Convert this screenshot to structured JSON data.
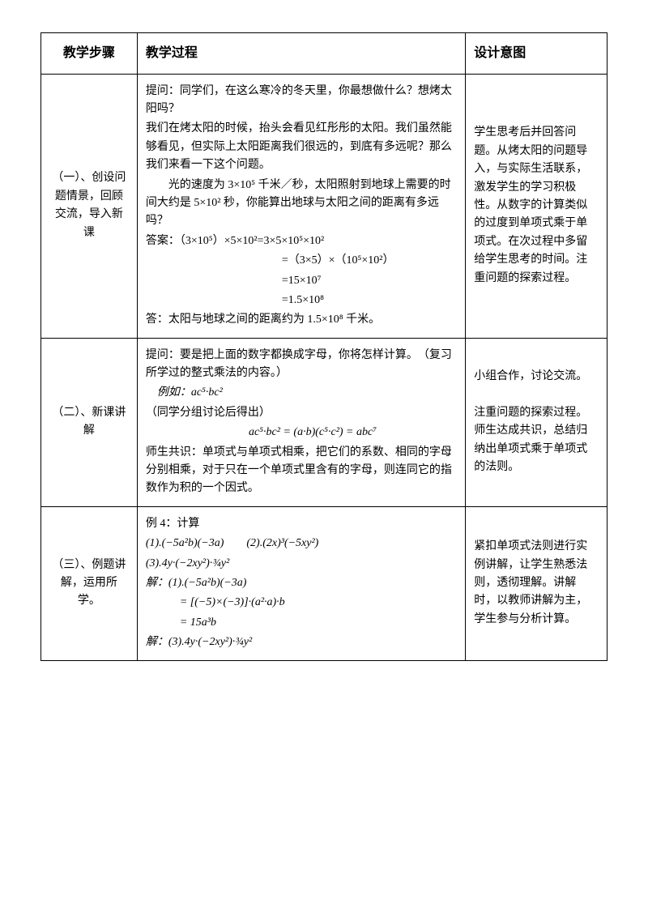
{
  "headers": {
    "step": "教学步骤",
    "process": "教学过程",
    "intent": "设计意图"
  },
  "rows": [
    {
      "step": "（一）、创设问题情景，回顾交流，导入新课",
      "process": {
        "lines": [
          "提问：同学们，在这么寒冷的冬天里，你最想做什么？想烤太阳吗？",
          "我们在烤太阳的时候，抬头会看见红彤彤的太阳。我们虽然能够看见，但实际上太阳距离我们很远的，到底有多远呢？那么我们来看一下这个问题。",
          "",
          "　　光的速度为 3×10⁵ 千米／秒，太阳照射到地球上需要的时间大约是 5×10² 秒，你能算出地球与太阳之间的距离有多远吗？",
          "答案：（3×10⁵）×5×10²=3×5×10⁵×10²",
          "　　　　　　　　　　　　=（3×5）×（10⁵×10²）",
          "　　　　　　　　　　　　=15×10⁷",
          "　　　　　　　　　　　　=1.5×10⁸",
          "",
          "答：太阳与地球之间的距离约为 1.5×10⁸ 千米。"
        ]
      },
      "intent": "学生思考后并回答问题。从烤太阳的问题导入，与实际生活联系，激发学生的学习积极性。从数字的计算类似的过度到单项式乘于单项式。在次过程中多留给学生思考的时间。注重问题的探索过程。"
    },
    {
      "step": "（二）、新课讲解",
      "process": {
        "lines": [
          "提问：要是把上面的数字都换成字母，你将怎样计算。　（复习所学过的整式乘法的内容。）",
          "　例如：ac⁵·bc²",
          "（同学分组讨论后得出）",
          "　　ac⁵·bc² = (a·b)(c⁵·c²) = abc⁷",
          "师生共识：单项式与单项式相乘，把它们的系数、相同的字母分别相乘，对于只在一个单项式里含有的字母，则连同它的指数作为积的一个因式。"
        ]
      },
      "intent": "小组合作，讨论交流。\n\n注重问题的探索过程。师生达成共识，总结归纳出单项式乘于单项式的法则。"
    },
    {
      "step": "（三）、例题讲解，运用所学。",
      "process": {
        "lines": [
          "例 4：计算",
          "(1).(−5a²b)(−3a)　　(2).(2x)³(−5xy²)",
          "(3).4y·(−2xy²)·¾y²",
          "解：(1).(−5a²b)(−3a)",
          "　　　= [(−5)×(−3)]·(a²·a)·b",
          "　　　= 15a³b",
          "解：(3).4y·(−2xy²)·¾y²"
        ]
      },
      "intent": "紧扣单项式法则进行实例讲解，让学生熟悉法则，透彻理解。讲解时，以教师讲解为主，学生参与分析计算。"
    }
  ]
}
